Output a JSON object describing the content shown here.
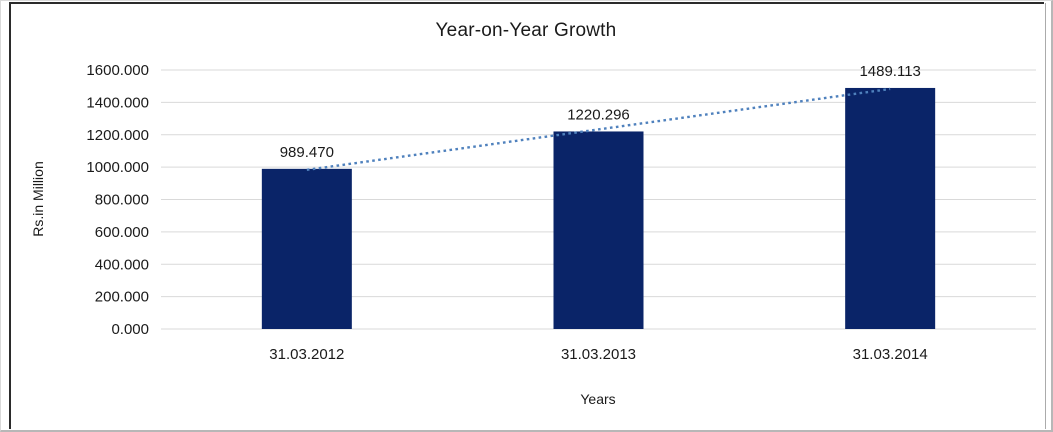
{
  "chart_data": {
    "type": "bar",
    "title": "Year-on-Year Growth",
    "xlabel": "Years",
    "ylabel": "Rs.in Million",
    "categories": [
      "31.03.2012",
      "31.03.2013",
      "31.03.2014"
    ],
    "values": [
      989.47,
      1220.296,
      1489.113
    ],
    "data_labels": [
      "989.470",
      "1220.296",
      "1489.113"
    ],
    "ylim": [
      0,
      1600
    ],
    "ytick_step": 200,
    "ytick_labels": [
      "0.000",
      "200.000",
      "400.000",
      "600.000",
      "800.000",
      "1000.000",
      "1200.000",
      "1400.000",
      "1600.000"
    ],
    "grid": true,
    "legend": "none",
    "trendline": {
      "type": "linear",
      "style": "dotted",
      "color": "#4F81BD"
    },
    "colors": {
      "bar": "#0a2468",
      "gridline": "#d9d9d9",
      "text": "#1a1a1a",
      "frame_dark": "#2b2b2b",
      "frame_light": "#ababab"
    }
  }
}
